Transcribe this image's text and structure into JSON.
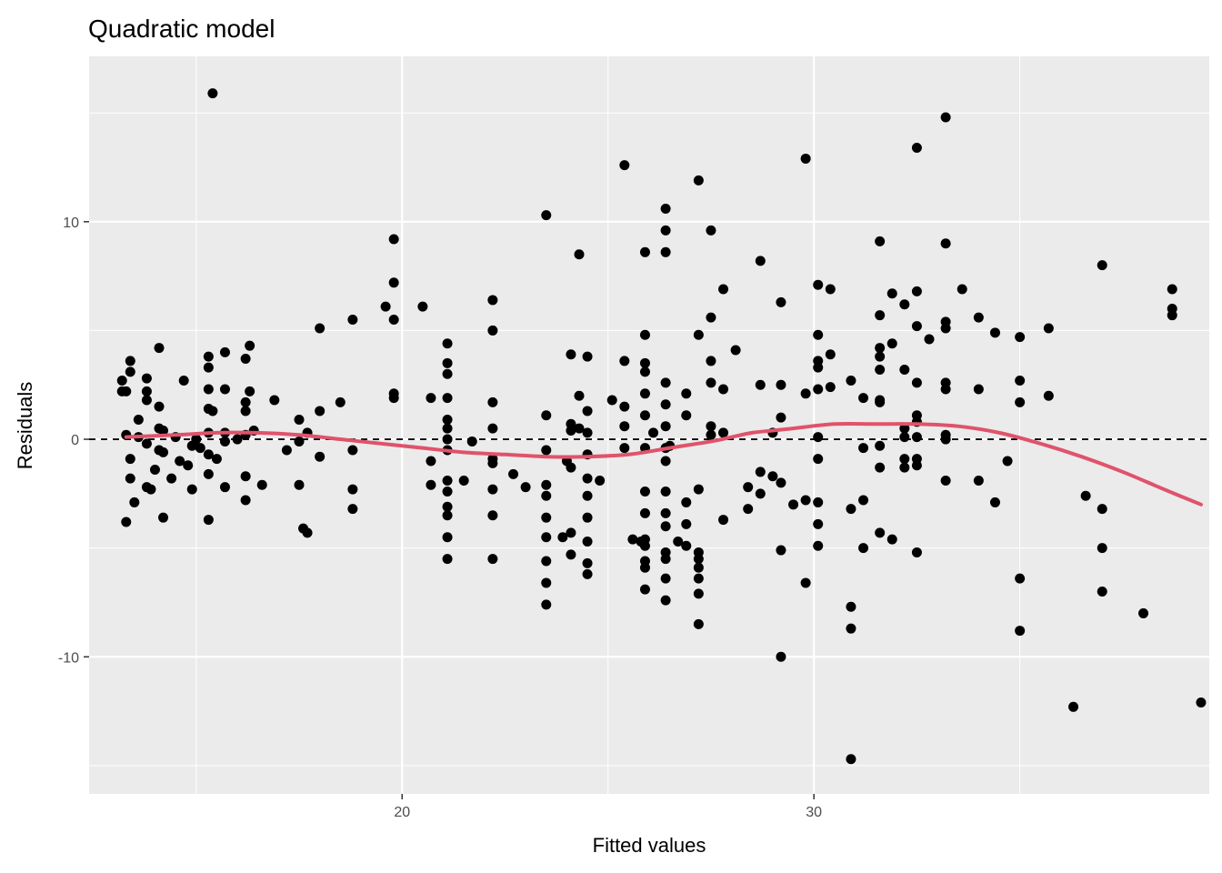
{
  "chart_data": {
    "type": "scatter",
    "title": "Quadratic model",
    "xlabel": "Fitted values",
    "ylabel": "Residuals",
    "xlim": [
      12.4,
      39.6
    ],
    "ylim": [
      -16.3,
      17.6
    ],
    "x_ticks": [
      20,
      30
    ],
    "x_tick_labels": [
      "20",
      "30"
    ],
    "y_ticks": [
      -10,
      0,
      10
    ],
    "y_tick_labels": [
      "-10",
      "0",
      "10"
    ],
    "x_minor_ticks": [
      15,
      25,
      35
    ],
    "y_minor_ticks": [
      -15,
      -5,
      5,
      15
    ],
    "grid": true,
    "panel_background": "#ebebeb",
    "point_color": "#000000",
    "smooth_color": "#df536b",
    "reference_line_y": 0,
    "points": [
      [
        15.4,
        15.9
      ],
      [
        13.2,
        2.7
      ],
      [
        13.2,
        2.2
      ],
      [
        13.3,
        2.2
      ],
      [
        13.3,
        0.2
      ],
      [
        13.3,
        -3.8
      ],
      [
        13.4,
        3.6
      ],
      [
        13.4,
        3.1
      ],
      [
        13.4,
        -0.9
      ],
      [
        13.4,
        -1.8
      ],
      [
        13.5,
        -2.9
      ],
      [
        13.6,
        0.9
      ],
      [
        13.6,
        0.1
      ],
      [
        13.8,
        2.8
      ],
      [
        13.8,
        2.2
      ],
      [
        13.8,
        1.8
      ],
      [
        13.8,
        -0.2
      ],
      [
        13.8,
        -2.2
      ],
      [
        13.9,
        -2.3
      ],
      [
        14.0,
        -1.4
      ],
      [
        14.1,
        4.2
      ],
      [
        14.1,
        1.5
      ],
      [
        14.1,
        0.5
      ],
      [
        14.1,
        -0.5
      ],
      [
        14.2,
        0.4
      ],
      [
        14.2,
        -0.6
      ],
      [
        14.2,
        -3.6
      ],
      [
        14.4,
        -1.8
      ],
      [
        14.5,
        0.1
      ],
      [
        14.6,
        -1.0
      ],
      [
        14.7,
        2.7
      ],
      [
        14.8,
        -1.2
      ],
      [
        14.9,
        -0.3
      ],
      [
        14.9,
        -2.3
      ],
      [
        15.0,
        0.0
      ],
      [
        15.1,
        -0.4
      ],
      [
        15.3,
        3.8
      ],
      [
        15.3,
        3.3
      ],
      [
        15.3,
        2.3
      ],
      [
        15.3,
        1.4
      ],
      [
        15.3,
        0.3
      ],
      [
        15.3,
        -0.7
      ],
      [
        15.3,
        -1.6
      ],
      [
        15.3,
        -3.7
      ],
      [
        15.4,
        1.3
      ],
      [
        15.5,
        -0.9
      ],
      [
        15.7,
        4.0
      ],
      [
        15.7,
        2.3
      ],
      [
        15.7,
        0.3
      ],
      [
        15.7,
        -0.1
      ],
      [
        15.7,
        -2.2
      ],
      [
        16.0,
        0.0
      ],
      [
        16.2,
        3.7
      ],
      [
        16.2,
        1.7
      ],
      [
        16.2,
        1.3
      ],
      [
        16.2,
        0.2
      ],
      [
        16.2,
        -1.7
      ],
      [
        16.2,
        -2.8
      ],
      [
        16.3,
        4.3
      ],
      [
        16.3,
        2.2
      ],
      [
        16.4,
        0.4
      ],
      [
        16.6,
        -2.1
      ],
      [
        16.9,
        1.8
      ],
      [
        17.2,
        -0.5
      ],
      [
        17.5,
        0.9
      ],
      [
        17.5,
        -0.1
      ],
      [
        17.5,
        -2.1
      ],
      [
        17.6,
        -4.1
      ],
      [
        17.7,
        -4.3
      ],
      [
        17.7,
        0.3
      ],
      [
        18.0,
        5.1
      ],
      [
        18.0,
        1.3
      ],
      [
        18.0,
        -0.8
      ],
      [
        18.5,
        1.7
      ],
      [
        18.8,
        5.5
      ],
      [
        18.8,
        -0.5
      ],
      [
        18.8,
        -2.3
      ],
      [
        18.8,
        -3.2
      ],
      [
        19.6,
        6.1
      ],
      [
        19.8,
        9.2
      ],
      [
        19.8,
        7.2
      ],
      [
        19.8,
        5.5
      ],
      [
        19.8,
        2.1
      ],
      [
        19.8,
        1.9
      ],
      [
        20.5,
        6.1
      ],
      [
        20.7,
        1.9
      ],
      [
        20.7,
        -1.0
      ],
      [
        20.7,
        -2.1
      ],
      [
        21.1,
        4.4
      ],
      [
        21.1,
        3.5
      ],
      [
        21.1,
        3.0
      ],
      [
        21.1,
        1.9
      ],
      [
        21.1,
        0.9
      ],
      [
        21.1,
        0.5
      ],
      [
        21.1,
        0.0
      ],
      [
        21.1,
        -0.5
      ],
      [
        21.1,
        -1.9
      ],
      [
        21.1,
        -2.4
      ],
      [
        21.1,
        -3.1
      ],
      [
        21.1,
        -3.5
      ],
      [
        21.1,
        -4.5
      ],
      [
        21.1,
        -5.5
      ],
      [
        21.5,
        -1.9
      ],
      [
        21.7,
        -0.1
      ],
      [
        22.2,
        6.4
      ],
      [
        22.2,
        5.0
      ],
      [
        22.2,
        1.7
      ],
      [
        22.2,
        0.5
      ],
      [
        22.2,
        -0.9
      ],
      [
        22.2,
        -1.1
      ],
      [
        22.2,
        -2.3
      ],
      [
        22.2,
        -3.5
      ],
      [
        22.2,
        -5.5
      ],
      [
        22.7,
        -1.6
      ],
      [
        23.0,
        -2.2
      ],
      [
        23.5,
        10.3
      ],
      [
        23.5,
        1.1
      ],
      [
        23.5,
        -0.5
      ],
      [
        23.5,
        -2.1
      ],
      [
        23.5,
        -2.6
      ],
      [
        23.5,
        -3.6
      ],
      [
        23.5,
        -4.5
      ],
      [
        23.5,
        -5.6
      ],
      [
        23.5,
        -6.6
      ],
      [
        23.5,
        -7.6
      ],
      [
        23.9,
        -4.5
      ],
      [
        24.0,
        -1.0
      ],
      [
        24.1,
        3.9
      ],
      [
        24.1,
        0.7
      ],
      [
        24.1,
        0.4
      ],
      [
        24.1,
        -1.3
      ],
      [
        24.1,
        -4.3
      ],
      [
        24.1,
        -5.3
      ],
      [
        24.3,
        8.5
      ],
      [
        24.3,
        2.0
      ],
      [
        24.3,
        0.5
      ],
      [
        24.5,
        3.8
      ],
      [
        24.5,
        1.3
      ],
      [
        24.5,
        0.3
      ],
      [
        24.5,
        -0.7
      ],
      [
        24.5,
        -1.8
      ],
      [
        24.5,
        -2.6
      ],
      [
        24.5,
        -3.6
      ],
      [
        24.5,
        -4.7
      ],
      [
        24.5,
        -5.7
      ],
      [
        24.5,
        -6.2
      ],
      [
        24.8,
        -1.9
      ],
      [
        25.1,
        1.8
      ],
      [
        25.4,
        12.6
      ],
      [
        25.4,
        3.6
      ],
      [
        25.4,
        1.5
      ],
      [
        25.4,
        0.6
      ],
      [
        25.4,
        -0.4
      ],
      [
        25.6,
        -4.6
      ],
      [
        25.8,
        -4.7
      ],
      [
        25.9,
        8.6
      ],
      [
        25.9,
        4.8
      ],
      [
        25.9,
        3.5
      ],
      [
        25.9,
        3.1
      ],
      [
        25.9,
        2.1
      ],
      [
        25.9,
        1.1
      ],
      [
        25.9,
        -0.4
      ],
      [
        25.9,
        -2.4
      ],
      [
        25.9,
        -3.4
      ],
      [
        25.9,
        -4.6
      ],
      [
        25.9,
        -4.9
      ],
      [
        25.9,
        -5.6
      ],
      [
        25.9,
        -5.9
      ],
      [
        25.9,
        -6.9
      ],
      [
        26.1,
        0.3
      ],
      [
        26.4,
        10.6
      ],
      [
        26.4,
        9.6
      ],
      [
        26.4,
        8.6
      ],
      [
        26.4,
        2.6
      ],
      [
        26.4,
        1.6
      ],
      [
        26.4,
        0.6
      ],
      [
        26.4,
        -0.4
      ],
      [
        26.4,
        -1.0
      ],
      [
        26.4,
        -2.4
      ],
      [
        26.4,
        -3.4
      ],
      [
        26.4,
        -4.0
      ],
      [
        26.4,
        -5.2
      ],
      [
        26.4,
        -5.5
      ],
      [
        26.4,
        -6.4
      ],
      [
        26.4,
        -7.4
      ],
      [
        26.5,
        -0.3
      ],
      [
        26.7,
        -4.7
      ],
      [
        26.9,
        2.1
      ],
      [
        26.9,
        1.1
      ],
      [
        26.9,
        -2.9
      ],
      [
        26.9,
        -3.9
      ],
      [
        26.9,
        -4.9
      ],
      [
        27.2,
        11.9
      ],
      [
        27.2,
        4.8
      ],
      [
        27.2,
        -2.3
      ],
      [
        27.2,
        -5.2
      ],
      [
        27.2,
        -5.5
      ],
      [
        27.2,
        -5.9
      ],
      [
        27.2,
        -6.4
      ],
      [
        27.2,
        -7.1
      ],
      [
        27.2,
        -8.5
      ],
      [
        27.5,
        9.6
      ],
      [
        27.5,
        5.6
      ],
      [
        27.5,
        3.6
      ],
      [
        27.5,
        2.6
      ],
      [
        27.5,
        0.6
      ],
      [
        27.5,
        0.2
      ],
      [
        27.8,
        6.9
      ],
      [
        27.8,
        2.3
      ],
      [
        27.8,
        0.3
      ],
      [
        27.8,
        -3.7
      ],
      [
        28.1,
        4.1
      ],
      [
        28.4,
        -2.2
      ],
      [
        28.4,
        -3.2
      ],
      [
        28.7,
        8.2
      ],
      [
        28.7,
        2.5
      ],
      [
        28.7,
        -1.5
      ],
      [
        28.7,
        -2.5
      ],
      [
        29.0,
        0.3
      ],
      [
        29.0,
        -1.7
      ],
      [
        29.2,
        6.3
      ],
      [
        29.2,
        2.5
      ],
      [
        29.2,
        1.0
      ],
      [
        29.2,
        -2.0
      ],
      [
        29.2,
        -5.1
      ],
      [
        29.2,
        -10.0
      ],
      [
        29.5,
        -3.0
      ],
      [
        29.8,
        12.9
      ],
      [
        29.8,
        2.1
      ],
      [
        29.8,
        -2.8
      ],
      [
        29.8,
        -6.6
      ],
      [
        30.1,
        7.1
      ],
      [
        30.1,
        4.8
      ],
      [
        30.1,
        3.6
      ],
      [
        30.1,
        3.3
      ],
      [
        30.1,
        2.3
      ],
      [
        30.1,
        0.1
      ],
      [
        30.1,
        -0.9
      ],
      [
        30.1,
        -2.9
      ],
      [
        30.1,
        -3.9
      ],
      [
        30.1,
        -4.9
      ],
      [
        30.4,
        6.9
      ],
      [
        30.4,
        3.9
      ],
      [
        30.4,
        2.4
      ],
      [
        30.9,
        2.7
      ],
      [
        30.9,
        -3.2
      ],
      [
        30.9,
        -7.7
      ],
      [
        30.9,
        -8.7
      ],
      [
        30.9,
        -14.7
      ],
      [
        31.2,
        1.9
      ],
      [
        31.2,
        -0.4
      ],
      [
        31.2,
        -2.8
      ],
      [
        31.2,
        -5.0
      ],
      [
        31.6,
        9.1
      ],
      [
        31.6,
        5.7
      ],
      [
        31.6,
        4.2
      ],
      [
        31.6,
        3.8
      ],
      [
        31.6,
        3.2
      ],
      [
        31.6,
        1.8
      ],
      [
        31.6,
        1.7
      ],
      [
        31.6,
        -0.3
      ],
      [
        31.6,
        -1.3
      ],
      [
        31.6,
        -4.3
      ],
      [
        31.9,
        6.7
      ],
      [
        31.9,
        4.4
      ],
      [
        31.9,
        -4.6
      ],
      [
        32.2,
        6.2
      ],
      [
        32.2,
        3.2
      ],
      [
        32.2,
        0.5
      ],
      [
        32.2,
        0.1
      ],
      [
        32.2,
        -0.9
      ],
      [
        32.2,
        -1.3
      ],
      [
        32.5,
        13.4
      ],
      [
        32.5,
        6.8
      ],
      [
        32.5,
        5.2
      ],
      [
        32.5,
        2.6
      ],
      [
        32.5,
        1.1
      ],
      [
        32.5,
        0.8
      ],
      [
        32.5,
        0.1
      ],
      [
        32.5,
        -0.9
      ],
      [
        32.5,
        -1.2
      ],
      [
        32.5,
        -5.2
      ],
      [
        32.8,
        4.6
      ],
      [
        33.2,
        14.8
      ],
      [
        33.2,
        9.0
      ],
      [
        33.2,
        5.4
      ],
      [
        33.2,
        5.1
      ],
      [
        33.2,
        2.6
      ],
      [
        33.2,
        2.3
      ],
      [
        33.2,
        0.2
      ],
      [
        33.2,
        0.0
      ],
      [
        33.2,
        -1.9
      ],
      [
        33.6,
        6.9
      ],
      [
        34.0,
        5.6
      ],
      [
        34.0,
        2.3
      ],
      [
        34.0,
        -1.9
      ],
      [
        34.4,
        4.9
      ],
      [
        34.4,
        -2.9
      ],
      [
        34.7,
        -1.0
      ],
      [
        35.0,
        4.7
      ],
      [
        35.0,
        2.7
      ],
      [
        35.0,
        1.7
      ],
      [
        35.0,
        -6.4
      ],
      [
        35.0,
        -8.8
      ],
      [
        35.7,
        5.1
      ],
      [
        35.7,
        2.0
      ],
      [
        36.3,
        -12.3
      ],
      [
        36.6,
        -2.6
      ],
      [
        37.0,
        8.0
      ],
      [
        37.0,
        -3.2
      ],
      [
        37.0,
        -5.0
      ],
      [
        37.0,
        -7.0
      ],
      [
        38.0,
        -8.0
      ],
      [
        38.7,
        6.9
      ],
      [
        38.7,
        6.0
      ],
      [
        38.7,
        5.7
      ],
      [
        39.4,
        -12.1
      ]
    ],
    "smooth_line": [
      [
        13.3,
        0.1
      ],
      [
        14.5,
        0.2
      ],
      [
        15.5,
        0.3
      ],
      [
        16.5,
        0.3
      ],
      [
        17.5,
        0.2
      ],
      [
        18.5,
        0.0
      ],
      [
        19.5,
        -0.2
      ],
      [
        20.5,
        -0.4
      ],
      [
        21.5,
        -0.6
      ],
      [
        22.5,
        -0.7
      ],
      [
        23.5,
        -0.8
      ],
      [
        24.5,
        -0.8
      ],
      [
        25.5,
        -0.7
      ],
      [
        26.5,
        -0.4
      ],
      [
        27.5,
        -0.1
      ],
      [
        28.0,
        0.1
      ],
      [
        28.5,
        0.3
      ],
      [
        29.0,
        0.4
      ],
      [
        29.5,
        0.5
      ],
      [
        30.5,
        0.7
      ],
      [
        31.5,
        0.7
      ],
      [
        32.5,
        0.7
      ],
      [
        33.5,
        0.6
      ],
      [
        34.5,
        0.3
      ],
      [
        35.5,
        -0.2
      ],
      [
        36.5,
        -0.8
      ],
      [
        37.5,
        -1.5
      ],
      [
        38.5,
        -2.3
      ],
      [
        39.4,
        -3.0
      ]
    ]
  }
}
